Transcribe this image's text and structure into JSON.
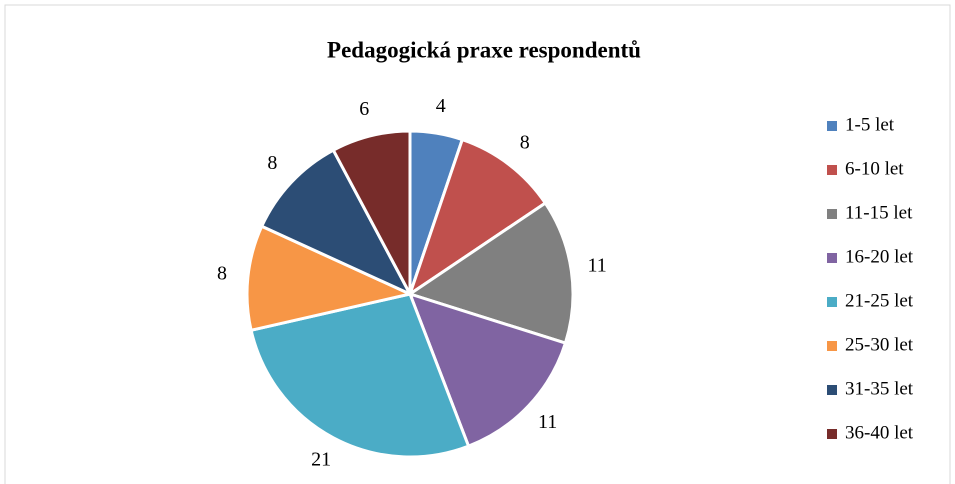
{
  "chart_data": {
    "type": "pie",
    "title": "Pedagogická praxe respondentů",
    "categories": [
      "1-5 let",
      "6-10 let",
      "11-15 let",
      "16-20 let",
      "21-25 let",
      "25-30 let",
      "31-35 let",
      "36-40 let"
    ],
    "values": [
      4,
      8,
      11,
      11,
      21,
      8,
      8,
      6
    ],
    "colors": [
      "#4f81bd",
      "#c0504d",
      "#808080",
      "#8064a2",
      "#4bacc6",
      "#f79646",
      "#2c4d75",
      "#772c2a"
    ],
    "legend": "right"
  }
}
